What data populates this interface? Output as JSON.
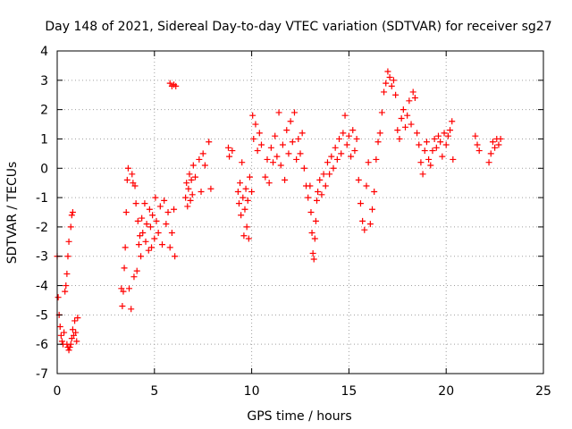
{
  "chart_data": {
    "type": "scatter",
    "title": "Day 148 of 2021, Sidereal Day-to-day VTEC variation (SDTVAR) for receiver sg27",
    "xlabel": "GPS time / hours",
    "ylabel": "SDTVAR / TECUs",
    "xlim": [
      0,
      25
    ],
    "ylim": [
      -7,
      4
    ],
    "x_ticks": [
      "0",
      "5",
      "10",
      "15",
      "20",
      "25"
    ],
    "x_tick_values": [
      0,
      5,
      10,
      15,
      20,
      25
    ],
    "y_ticks": [
      "-7",
      "-6",
      "-5",
      "-4",
      "-3",
      "-2",
      "-1",
      "0",
      "1",
      "2",
      "3",
      "4"
    ],
    "y_tick_values": [
      -7,
      -6,
      -5,
      -4,
      -3,
      -2,
      -1,
      0,
      1,
      2,
      3,
      4
    ],
    "grid": true,
    "marker": "+",
    "marker_color": "#ff0000",
    "series": [
      {
        "name": "SDTVAR",
        "points": [
          [
            0.0,
            -3.0
          ],
          [
            0.05,
            -4.4
          ],
          [
            0.1,
            -5.0
          ],
          [
            0.15,
            -5.4
          ],
          [
            0.2,
            -5.7
          ],
          [
            0.25,
            -5.9
          ],
          [
            0.3,
            -6.0
          ],
          [
            0.35,
            -5.6
          ],
          [
            0.4,
            -4.2
          ],
          [
            0.45,
            -4.0
          ],
          [
            0.5,
            -3.6
          ],
          [
            0.5,
            -6.0
          ],
          [
            0.55,
            -3.0
          ],
          [
            0.55,
            -6.1
          ],
          [
            0.6,
            -2.5
          ],
          [
            0.6,
            -6.2
          ],
          [
            0.65,
            -6.1
          ],
          [
            0.7,
            -2.0
          ],
          [
            0.7,
            -6.0
          ],
          [
            0.75,
            -1.6
          ],
          [
            0.75,
            -5.8
          ],
          [
            0.8,
            -1.5
          ],
          [
            0.8,
            -5.5
          ],
          [
            0.85,
            -5.7
          ],
          [
            0.9,
            -5.2
          ],
          [
            0.95,
            -5.6
          ],
          [
            1.0,
            -5.9
          ],
          [
            1.05,
            -5.1
          ],
          [
            3.3,
            -4.1
          ],
          [
            3.35,
            -4.7
          ],
          [
            3.4,
            -4.2
          ],
          [
            3.45,
            -3.4
          ],
          [
            3.5,
            -2.7
          ],
          [
            3.55,
            -1.5
          ],
          [
            3.6,
            -0.4
          ],
          [
            3.65,
            0.0
          ],
          [
            3.7,
            -4.1
          ],
          [
            3.8,
            -4.8
          ],
          [
            3.85,
            -0.2
          ],
          [
            3.9,
            -0.5
          ],
          [
            3.95,
            -3.7
          ],
          [
            4.0,
            -0.6
          ],
          [
            4.05,
            -1.2
          ],
          [
            4.1,
            -3.5
          ],
          [
            4.15,
            -1.8
          ],
          [
            4.2,
            -2.6
          ],
          [
            4.25,
            -2.3
          ],
          [
            4.3,
            -3.0
          ],
          [
            4.35,
            -1.7
          ],
          [
            4.4,
            -2.2
          ],
          [
            4.5,
            -1.2
          ],
          [
            4.55,
            -2.5
          ],
          [
            4.6,
            -1.9
          ],
          [
            4.7,
            -2.8
          ],
          [
            4.75,
            -1.4
          ],
          [
            4.8,
            -2.0
          ],
          [
            4.85,
            -2.7
          ],
          [
            4.9,
            -1.6
          ],
          [
            5.0,
            -2.4
          ],
          [
            5.05,
            -1.0
          ],
          [
            5.1,
            -1.8
          ],
          [
            5.2,
            -2.2
          ],
          [
            5.3,
            -1.3
          ],
          [
            5.4,
            -2.6
          ],
          [
            5.5,
            -1.1
          ],
          [
            5.6,
            -1.9
          ],
          [
            5.7,
            -1.5
          ],
          [
            5.8,
            -2.7
          ],
          [
            5.9,
            -2.2
          ],
          [
            6.0,
            -1.4
          ],
          [
            6.05,
            -3.0
          ],
          [
            5.8,
            2.9
          ],
          [
            5.9,
            2.8
          ],
          [
            6.0,
            2.85
          ],
          [
            6.1,
            2.8
          ],
          [
            6.6,
            -1.0
          ],
          [
            6.65,
            -0.5
          ],
          [
            6.7,
            -1.3
          ],
          [
            6.75,
            -0.7
          ],
          [
            6.8,
            -0.2
          ],
          [
            6.85,
            -1.1
          ],
          [
            6.9,
            -0.4
          ],
          [
            6.95,
            -0.9
          ],
          [
            7.0,
            0.1
          ],
          [
            7.1,
            -0.3
          ],
          [
            7.3,
            0.3
          ],
          [
            7.4,
            -0.8
          ],
          [
            7.5,
            0.5
          ],
          [
            7.6,
            0.1
          ],
          [
            7.8,
            0.9
          ],
          [
            7.9,
            -0.7
          ],
          [
            8.8,
            0.7
          ],
          [
            8.85,
            0.4
          ],
          [
            9.0,
            0.6
          ],
          [
            9.3,
            -0.8
          ],
          [
            9.35,
            -1.2
          ],
          [
            9.4,
            -0.5
          ],
          [
            9.45,
            -1.6
          ],
          [
            9.5,
            0.2
          ],
          [
            9.55,
            -1.0
          ],
          [
            9.6,
            -2.3
          ],
          [
            9.65,
            -1.4
          ],
          [
            9.7,
            -0.7
          ],
          [
            9.75,
            -2.0
          ],
          [
            9.8,
            -1.1
          ],
          [
            9.85,
            -2.4
          ],
          [
            9.9,
            -0.3
          ],
          [
            10.0,
            -0.8
          ],
          [
            10.05,
            1.8
          ],
          [
            10.1,
            1.0
          ],
          [
            10.2,
            1.5
          ],
          [
            10.3,
            0.6
          ],
          [
            10.4,
            1.2
          ],
          [
            10.5,
            0.8
          ],
          [
            10.7,
            -0.3
          ],
          [
            10.8,
            0.3
          ],
          [
            10.9,
            -0.5
          ],
          [
            11.0,
            0.7
          ],
          [
            11.1,
            0.2
          ],
          [
            11.2,
            1.1
          ],
          [
            11.3,
            0.4
          ],
          [
            11.4,
            1.9
          ],
          [
            11.5,
            0.1
          ],
          [
            11.6,
            0.8
          ],
          [
            11.7,
            -0.4
          ],
          [
            11.8,
            1.3
          ],
          [
            11.9,
            0.5
          ],
          [
            12.0,
            1.6
          ],
          [
            12.1,
            0.9
          ],
          [
            12.2,
            1.9
          ],
          [
            12.3,
            0.3
          ],
          [
            12.4,
            1.0
          ],
          [
            12.5,
            0.5
          ],
          [
            12.6,
            1.2
          ],
          [
            12.7,
            0.0
          ],
          [
            12.8,
            -0.6
          ],
          [
            12.9,
            -1.0
          ],
          [
            13.0,
            -0.6
          ],
          [
            13.05,
            -1.5
          ],
          [
            13.1,
            -2.2
          ],
          [
            13.15,
            -2.9
          ],
          [
            13.2,
            -3.1
          ],
          [
            13.25,
            -2.4
          ],
          [
            13.3,
            -1.8
          ],
          [
            13.35,
            -1.1
          ],
          [
            13.4,
            -0.8
          ],
          [
            13.5,
            -0.4
          ],
          [
            13.6,
            -0.9
          ],
          [
            13.7,
            -0.2
          ],
          [
            13.8,
            -0.6
          ],
          [
            13.9,
            0.2
          ],
          [
            14.0,
            -0.2
          ],
          [
            14.1,
            0.4
          ],
          [
            14.2,
            0.0
          ],
          [
            14.3,
            0.7
          ],
          [
            14.4,
            0.3
          ],
          [
            14.5,
            1.0
          ],
          [
            14.6,
            0.5
          ],
          [
            14.7,
            1.2
          ],
          [
            14.8,
            1.8
          ],
          [
            14.9,
            0.8
          ],
          [
            15.0,
            1.1
          ],
          [
            15.1,
            0.4
          ],
          [
            15.2,
            1.3
          ],
          [
            15.3,
            0.6
          ],
          [
            15.4,
            1.0
          ],
          [
            15.5,
            -0.4
          ],
          [
            15.6,
            -1.2
          ],
          [
            15.7,
            -1.8
          ],
          [
            15.8,
            -2.1
          ],
          [
            15.9,
            -0.6
          ],
          [
            16.0,
            0.2
          ],
          [
            16.1,
            -1.9
          ],
          [
            16.2,
            -1.4
          ],
          [
            16.3,
            -0.8
          ],
          [
            16.4,
            0.3
          ],
          [
            16.5,
            0.9
          ],
          [
            16.6,
            1.2
          ],
          [
            16.7,
            1.9
          ],
          [
            16.8,
            2.6
          ],
          [
            16.9,
            2.9
          ],
          [
            17.0,
            3.3
          ],
          [
            17.1,
            3.1
          ],
          [
            17.2,
            2.8
          ],
          [
            17.3,
            3.0
          ],
          [
            17.4,
            2.5
          ],
          [
            17.5,
            1.3
          ],
          [
            17.6,
            1.0
          ],
          [
            17.7,
            1.7
          ],
          [
            17.8,
            2.0
          ],
          [
            17.9,
            1.4
          ],
          [
            18.0,
            1.8
          ],
          [
            18.1,
            2.3
          ],
          [
            18.2,
            1.5
          ],
          [
            18.3,
            2.6
          ],
          [
            18.4,
            2.4
          ],
          [
            18.5,
            1.2
          ],
          [
            18.6,
            0.8
          ],
          [
            18.7,
            0.2
          ],
          [
            18.8,
            -0.2
          ],
          [
            18.9,
            0.6
          ],
          [
            19.0,
            0.9
          ],
          [
            19.1,
            0.3
          ],
          [
            19.2,
            0.1
          ],
          [
            19.3,
            0.6
          ],
          [
            19.4,
            1.0
          ],
          [
            19.5,
            0.7
          ],
          [
            19.6,
            1.1
          ],
          [
            19.7,
            0.9
          ],
          [
            19.8,
            0.4
          ],
          [
            19.9,
            1.2
          ],
          [
            20.0,
            0.8
          ],
          [
            20.1,
            1.1
          ],
          [
            20.2,
            1.3
          ],
          [
            20.3,
            1.6
          ],
          [
            20.35,
            0.3
          ],
          [
            21.5,
            1.1
          ],
          [
            21.6,
            0.8
          ],
          [
            21.7,
            0.6
          ],
          [
            22.2,
            0.2
          ],
          [
            22.3,
            0.5
          ],
          [
            22.4,
            0.9
          ],
          [
            22.5,
            0.7
          ],
          [
            22.6,
            1.0
          ],
          [
            22.7,
            0.8
          ],
          [
            22.8,
            1.0
          ]
        ]
      }
    ]
  }
}
